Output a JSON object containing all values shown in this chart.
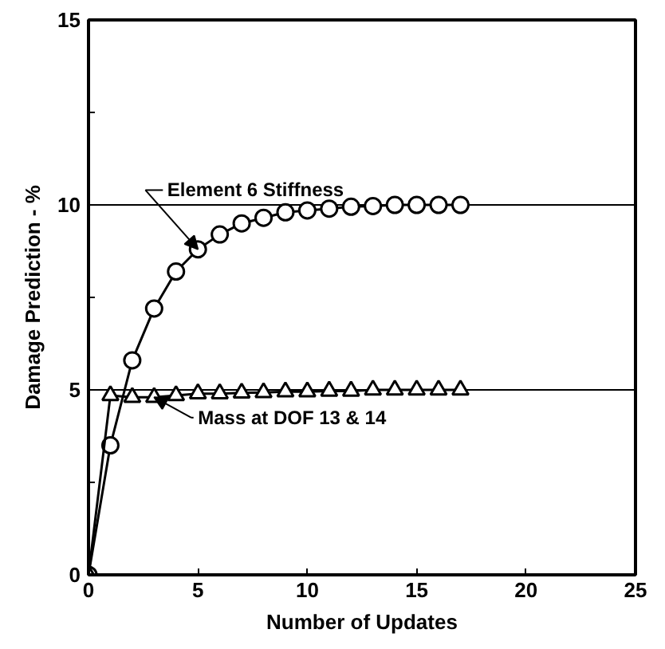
{
  "chart_data": {
    "type": "line",
    "xlabel": "Number of Updates",
    "ylabel": "Damage Prediction - %",
    "xlim": [
      0,
      25
    ],
    "xticks": [
      0,
      5,
      10,
      15,
      20,
      25
    ],
    "ylim": [
      0,
      15
    ],
    "yticks": [
      0,
      {
        "value": 2.5,
        "label": null
      },
      5,
      {
        "value": 7.5,
        "label": null
      },
      10,
      {
        "value": 12.5,
        "label": null
      },
      15
    ],
    "grid": "y",
    "x": [
      0,
      1,
      2,
      3,
      4,
      5,
      6,
      7,
      8,
      9,
      10,
      11,
      12,
      13,
      14,
      15,
      16,
      17
    ],
    "series": [
      {
        "color": "#000000",
        "marker": "circle",
        "values": [
          0,
          3.5,
          5.8,
          7.2,
          8.2,
          8.8,
          9.2,
          9.5,
          9.65,
          9.8,
          9.85,
          9.9,
          9.95,
          9.97,
          10,
          10,
          10,
          10
        ]
      },
      {
        "color": "#000000",
        "marker": "triangle",
        "values": [
          0,
          4.85,
          4.8,
          4.8,
          4.85,
          4.9,
          4.9,
          4.92,
          4.93,
          4.95,
          4.95,
          4.97,
          4.97,
          5,
          5,
          5,
          5,
          5
        ]
      }
    ],
    "annotations": [
      {
        "text": "Element 6 Stiffness",
        "x": 5,
        "y": 8.8
      },
      {
        "text": "Mass at DOF 13 & 14",
        "x": 3,
        "y": 4.8
      }
    ]
  }
}
